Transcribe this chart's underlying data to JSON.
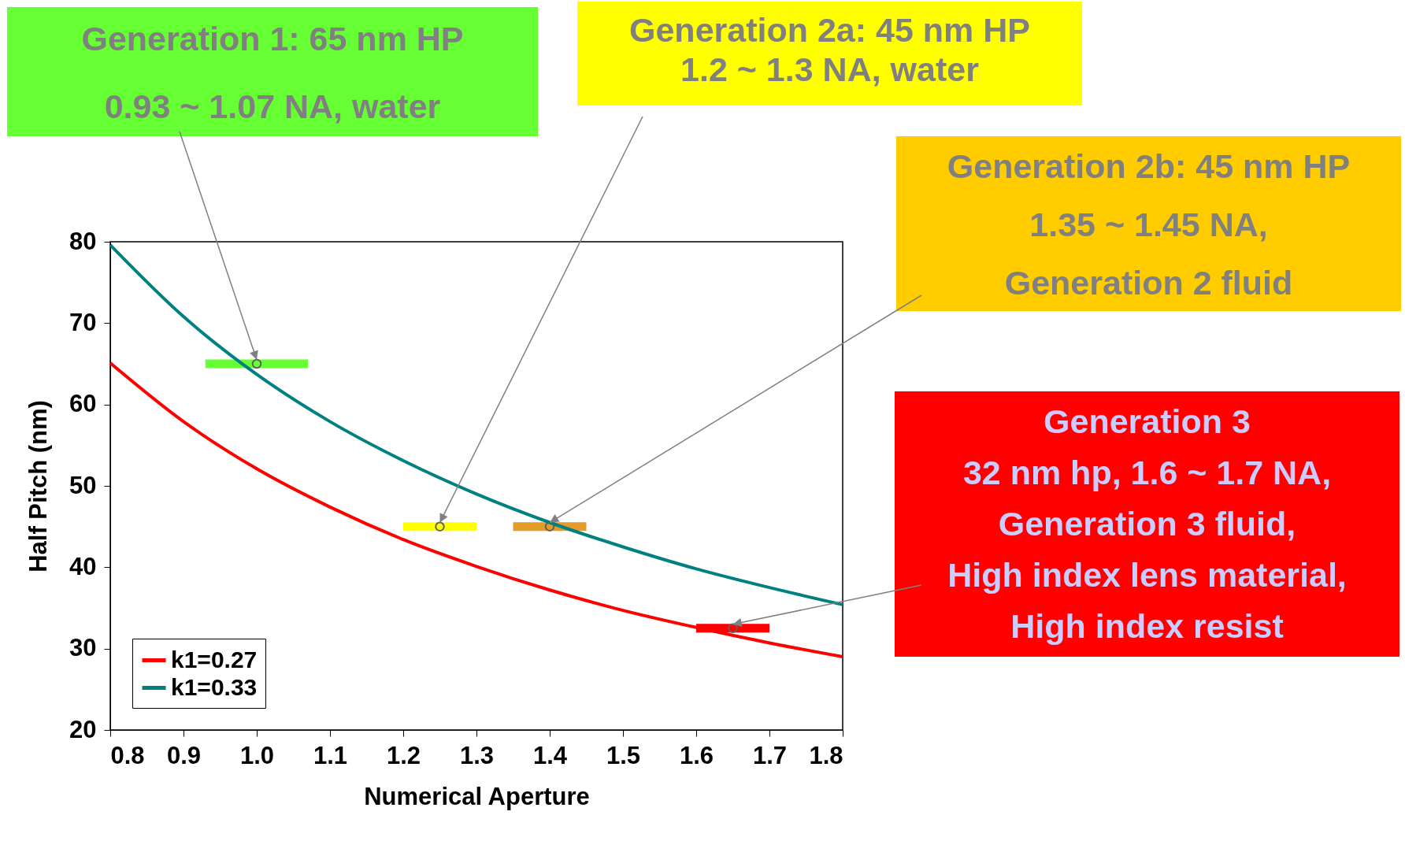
{
  "chart_data": {
    "type": "line",
    "xlabel": "Numerical Aperture",
    "ylabel": "Half Pitch (nm)",
    "x": [
      0.8,
      0.9,
      1.0,
      1.1,
      1.2,
      1.3,
      1.4,
      1.5,
      1.6,
      1.7,
      1.8
    ],
    "series": [
      {
        "name": "k1=0.27",
        "color": "#ff0000",
        "values": [
          65.1,
          57.9,
          52.1,
          47.4,
          43.4,
          40.1,
          37.2,
          34.7,
          32.6,
          30.7,
          29.0
        ]
      },
      {
        "name": "k1=0.33",
        "color": "#008080",
        "values": [
          79.6,
          70.8,
          63.7,
          57.9,
          53.1,
          49.0,
          45.5,
          42.5,
          39.8,
          37.5,
          35.4
        ]
      },
      {
        "type": "scatter",
        "x": [
          1.0,
          1.25,
          1.4,
          1.65
        ],
        "values": [
          65,
          45,
          45,
          32.5
        ],
        "xerrors": [
          [
            0.93,
            1.07
          ],
          [
            1.2,
            1.3
          ],
          [
            1.35,
            1.45
          ],
          [
            1.6,
            1.7
          ]
        ],
        "colors": [
          "#66ff33",
          "#ffff00",
          "#e69a28",
          "#ff0000"
        ]
      }
    ],
    "xlim": [
      0.8,
      1.8
    ],
    "xticks": [
      0.8,
      0.9,
      {
        "value": 1.0,
        "label": "1.0"
      },
      1.1,
      1.2,
      1.3,
      1.4,
      1.5,
      1.6,
      1.7,
      1.8
    ],
    "ylim": [
      20,
      80
    ],
    "yticks": [
      20,
      30,
      40,
      50,
      60,
      70,
      80
    ],
    "legend": "bottom left",
    "annotations": [
      {
        "text": "Generation 1: 65 nm HP\n0.93 ~ 1.07 NA, water",
        "x": 1.0,
        "y": 65
      },
      {
        "text": "Generation 2a: 45 nm HP\n1.2 ~ 1.3 NA, water",
        "x": 1.25,
        "y": 45
      },
      {
        "text": "Generation 2b: 45 nm HP\n1.35 ~ 1.45 NA,\nGeneration 2 fluid",
        "x": 1.4,
        "y": 45
      },
      {
        "text": "Generation 3\n32 nm hp, 1.6 ~ 1.7 NA,\nGeneration 3 fluid,\nHigh index lens material,\nHigh index resist",
        "x": 1.65,
        "y": 32.5
      }
    ]
  }
}
